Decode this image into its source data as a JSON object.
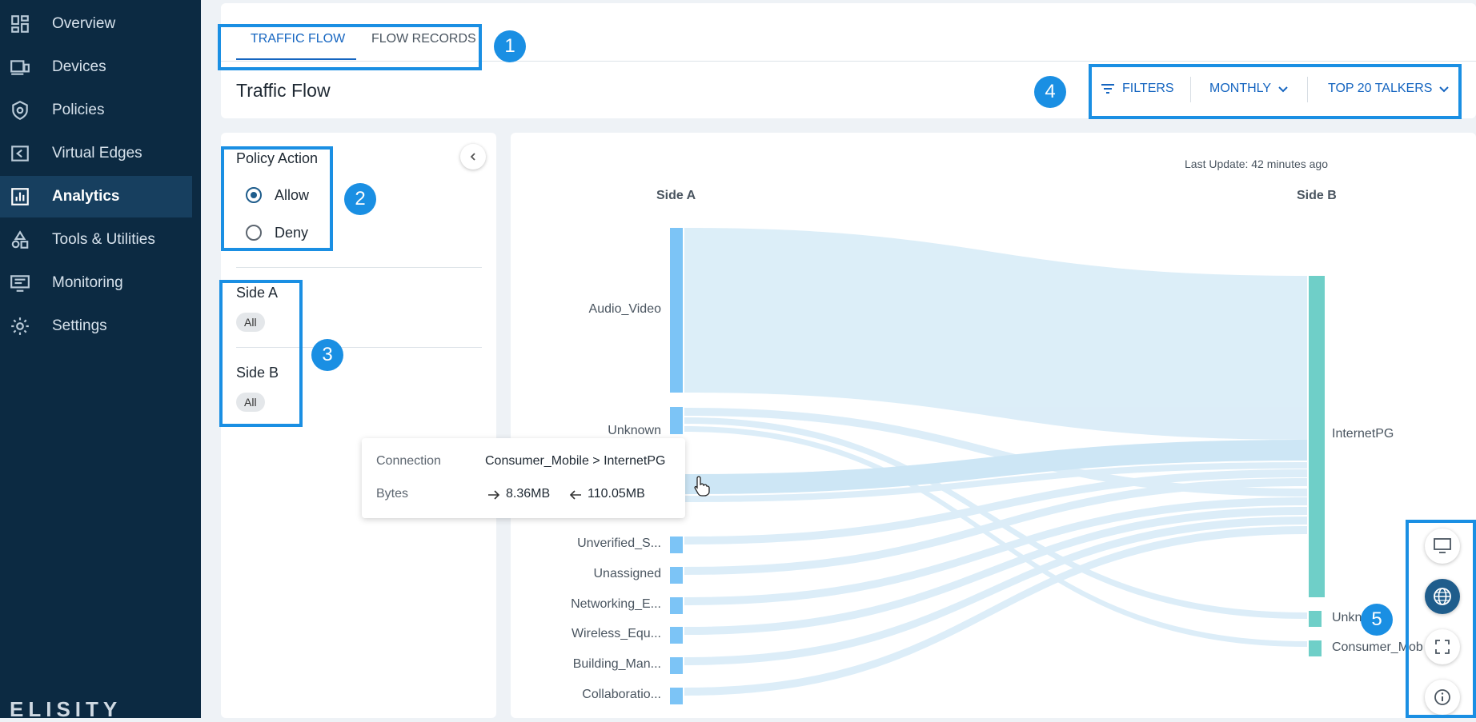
{
  "sidebar": {
    "items": [
      {
        "label": "Overview",
        "icon": "dashboard-icon"
      },
      {
        "label": "Devices",
        "icon": "devices-icon"
      },
      {
        "label": "Policies",
        "icon": "shield-icon"
      },
      {
        "label": "Virtual Edges",
        "icon": "virtual-edge-icon"
      },
      {
        "label": "Analytics",
        "icon": "analytics-icon",
        "active": true
      },
      {
        "label": "Tools & Utilities",
        "icon": "tools-icon"
      },
      {
        "label": "Monitoring",
        "icon": "monitor-icon"
      },
      {
        "label": "Settings",
        "icon": "gear-icon"
      }
    ],
    "logo": "ELISITY"
  },
  "tabs": [
    {
      "label": "TRAFFIC FLOW",
      "active": true
    },
    {
      "label": "FLOW RECORDS"
    }
  ],
  "page_title": "Traffic Flow",
  "toolbar": {
    "filters": "FILTERS",
    "period": "MONTHLY",
    "talkers": "TOP 20 TALKERS"
  },
  "left_panel": {
    "policy_action": {
      "heading": "Policy Action",
      "options": [
        {
          "label": "Allow",
          "selected": true
        },
        {
          "label": "Deny",
          "selected": false
        }
      ]
    },
    "side_a": {
      "heading": "Side A",
      "chip": "All"
    },
    "side_b": {
      "heading": "Side B",
      "chip": "All"
    }
  },
  "chart": {
    "last_update": "Last Update: 42 minutes ago",
    "side_a_title": "Side A",
    "side_b_title": "Side B",
    "left_nodes": [
      "Audio_Video",
      "Unknown",
      "Unverified_S...",
      "Unassigned",
      "Networking_E...",
      "Wireless_Equ...",
      "Building_Man...",
      "Collaboratio..."
    ],
    "right_nodes": [
      "InternetPG",
      "Unkn",
      "Consumer_Mob"
    ]
  },
  "tooltip": {
    "connection_label": "Connection",
    "connection_value": "Consumer_Mobile > InternetPG",
    "bytes_label": "Bytes",
    "bytes_out": "8.36MB",
    "bytes_in": "110.05MB"
  },
  "annotations": [
    "1",
    "2",
    "3",
    "4",
    "5"
  ],
  "colors": {
    "sidebar_bg": "#0c2a42",
    "accent": "#1565c0",
    "left_node": "#7cc4f6",
    "right_node": "#6fcfc8",
    "link": "#d6ebf7",
    "annotation": "#1a8fe3"
  }
}
